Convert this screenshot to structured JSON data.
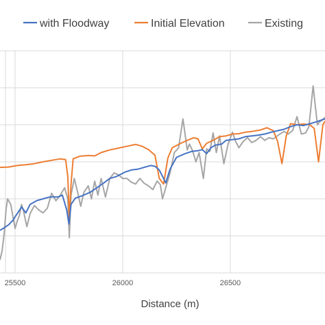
{
  "chart_data": {
    "type": "line",
    "xlabel": "Distance (m)",
    "ylabel": "",
    "xlim": [
      25430,
      26940
    ],
    "ylim": [
      0,
      6
    ],
    "x_ticks": [
      25500,
      26000,
      26500
    ],
    "x_tick_labels": [
      "25500",
      "26000",
      "26500"
    ],
    "grid": true,
    "legend_position": "top",
    "series": [
      {
        "name": "with Floodway",
        "color": "#4472c4",
        "points": [
          [
            25430,
            1.15
          ],
          [
            25450,
            1.22
          ],
          [
            25470,
            1.3
          ],
          [
            25490,
            1.42
          ],
          [
            25510,
            1.6
          ],
          [
            25530,
            1.78
          ],
          [
            25550,
            1.62
          ],
          [
            25570,
            1.85
          ],
          [
            25600,
            1.95
          ],
          [
            25630,
            2.0
          ],
          [
            25660,
            2.05
          ],
          [
            25700,
            2.05
          ],
          [
            25720,
            2.1
          ],
          [
            25740,
            1.7
          ],
          [
            25750,
            1.32
          ],
          [
            25760,
            1.85
          ],
          [
            25780,
            2.02
          ],
          [
            25810,
            2.08
          ],
          [
            25850,
            2.18
          ],
          [
            25880,
            2.3
          ],
          [
            25910,
            2.42
          ],
          [
            25940,
            2.55
          ],
          [
            25970,
            2.6
          ],
          [
            26010,
            2.72
          ],
          [
            26040,
            2.78
          ],
          [
            26070,
            2.8
          ],
          [
            26100,
            2.85
          ],
          [
            26130,
            2.9
          ],
          [
            26150,
            2.88
          ],
          [
            26170,
            2.78
          ],
          [
            26190,
            2.55
          ],
          [
            26200,
            2.43
          ],
          [
            26220,
            2.8
          ],
          [
            26250,
            3.12
          ],
          [
            26290,
            3.22
          ],
          [
            26320,
            3.28
          ],
          [
            26350,
            3.3
          ],
          [
            26370,
            3.33
          ],
          [
            26390,
            3.22
          ],
          [
            26410,
            3.38
          ],
          [
            26430,
            3.45
          ],
          [
            26460,
            3.48
          ],
          [
            26480,
            3.58
          ],
          [
            26510,
            3.6
          ],
          [
            26540,
            3.62
          ],
          [
            26570,
            3.68
          ],
          [
            26600,
            3.7
          ],
          [
            26630,
            3.72
          ],
          [
            26660,
            3.75
          ],
          [
            26690,
            3.8
          ],
          [
            26720,
            3.84
          ],
          [
            26750,
            3.88
          ],
          [
            26780,
            3.95
          ],
          [
            26810,
            4.0
          ],
          [
            26840,
            3.98
          ],
          [
            26870,
            4.03
          ],
          [
            26900,
            4.08
          ],
          [
            26920,
            4.12
          ],
          [
            26940,
            4.16
          ]
        ]
      },
      {
        "name": "Initial Elevation",
        "color": "#ed7d31",
        "points": [
          [
            25430,
            2.85
          ],
          [
            25470,
            2.86
          ],
          [
            25510,
            2.9
          ],
          [
            25550,
            2.92
          ],
          [
            25590,
            2.95
          ],
          [
            25630,
            3.0
          ],
          [
            25670,
            3.04
          ],
          [
            25710,
            3.08
          ],
          [
            25735,
            3.06
          ],
          [
            25745,
            2.6
          ],
          [
            25752,
            1.45
          ],
          [
            25760,
            2.4
          ],
          [
            25770,
            3.08
          ],
          [
            25800,
            3.15
          ],
          [
            25840,
            3.17
          ],
          [
            25870,
            3.16
          ],
          [
            25900,
            3.25
          ],
          [
            25940,
            3.32
          ],
          [
            25980,
            3.37
          ],
          [
            26020,
            3.42
          ],
          [
            26060,
            3.47
          ],
          [
            26090,
            3.42
          ],
          [
            26120,
            3.33
          ],
          [
            26150,
            3.18
          ],
          [
            26170,
            2.55
          ],
          [
            26190,
            2.4
          ],
          [
            26210,
            3.1
          ],
          [
            26230,
            3.38
          ],
          [
            26270,
            3.5
          ],
          [
            26300,
            3.58
          ],
          [
            26330,
            3.65
          ],
          [
            26350,
            3.62
          ],
          [
            26370,
            3.35
          ],
          [
            26390,
            3.5
          ],
          [
            26420,
            3.58
          ],
          [
            26450,
            3.68
          ],
          [
            26480,
            3.7
          ],
          [
            26510,
            3.75
          ],
          [
            26540,
            3.76
          ],
          [
            26570,
            3.8
          ],
          [
            26600,
            3.82
          ],
          [
            26640,
            3.86
          ],
          [
            26670,
            3.92
          ],
          [
            26700,
            3.84
          ],
          [
            26720,
            3.55
          ],
          [
            26740,
            2.95
          ],
          [
            26760,
            3.7
          ],
          [
            26780,
            4.03
          ],
          [
            26810,
            4.0
          ],
          [
            26840,
            4.02
          ],
          [
            26870,
            4.0
          ],
          [
            26890,
            3.9
          ],
          [
            26910,
            3.0
          ],
          [
            26930,
            4.0
          ],
          [
            26940,
            4.1
          ]
        ]
      },
      {
        "name": "Existing",
        "color": "#a5a5a5",
        "points": [
          [
            25430,
            0.35
          ],
          [
            25440,
            0.6
          ],
          [
            25450,
            1.1
          ],
          [
            25458,
            1.7
          ],
          [
            25465,
            2.0
          ],
          [
            25480,
            1.85
          ],
          [
            25500,
            1.2
          ],
          [
            25510,
            1.4
          ],
          [
            25520,
            1.55
          ],
          [
            25530,
            1.85
          ],
          [
            25540,
            1.65
          ],
          [
            25555,
            1.25
          ],
          [
            25570,
            1.6
          ],
          [
            25590,
            1.82
          ],
          [
            25610,
            1.7
          ],
          [
            25630,
            1.62
          ],
          [
            25650,
            1.75
          ],
          [
            25670,
            2.15
          ],
          [
            25690,
            1.95
          ],
          [
            25710,
            2.1
          ],
          [
            25730,
            2.3
          ],
          [
            25745,
            2.0
          ],
          [
            25752,
            0.95
          ],
          [
            25760,
            2.1
          ],
          [
            25775,
            2.55
          ],
          [
            25790,
            2.2
          ],
          [
            25805,
            1.8
          ],
          [
            25820,
            2.18
          ],
          [
            25840,
            2.35
          ],
          [
            25855,
            2.0
          ],
          [
            25870,
            2.48
          ],
          [
            25885,
            2.1
          ],
          [
            25900,
            2.55
          ],
          [
            25920,
            2.05
          ],
          [
            25940,
            2.55
          ],
          [
            25960,
            2.7
          ],
          [
            25980,
            2.65
          ],
          [
            26000,
            2.55
          ],
          [
            26020,
            2.55
          ],
          [
            26040,
            2.45
          ],
          [
            26060,
            2.4
          ],
          [
            26080,
            2.55
          ],
          [
            26100,
            2.42
          ],
          [
            26120,
            2.35
          ],
          [
            26140,
            2.25
          ],
          [
            26160,
            2.48
          ],
          [
            26175,
            2.38
          ],
          [
            26185,
            2.0
          ],
          [
            26200,
            2.3
          ],
          [
            26220,
            2.7
          ],
          [
            26240,
            3.25
          ],
          [
            26260,
            3.38
          ],
          [
            26280,
            4.16
          ],
          [
            26300,
            3.32
          ],
          [
            26310,
            3.48
          ],
          [
            26325,
            3.3
          ],
          [
            26340,
            3.0
          ],
          [
            26355,
            3.25
          ],
          [
            26375,
            2.55
          ],
          [
            26390,
            3.35
          ],
          [
            26405,
            3.28
          ],
          [
            26420,
            3.78
          ],
          [
            26435,
            3.25
          ],
          [
            26450,
            3.7
          ],
          [
            26470,
            2.95
          ],
          [
            26490,
            3.48
          ],
          [
            26510,
            3.8
          ],
          [
            26525,
            3.55
          ],
          [
            26540,
            3.38
          ],
          [
            26560,
            3.55
          ],
          [
            26580,
            3.65
          ],
          [
            26600,
            3.52
          ],
          [
            26620,
            3.58
          ],
          [
            26640,
            3.68
          ],
          [
            26660,
            3.58
          ],
          [
            26680,
            3.65
          ],
          [
            26700,
            3.62
          ],
          [
            26730,
            3.75
          ],
          [
            26750,
            3.82
          ],
          [
            26770,
            3.75
          ],
          [
            26790,
            3.85
          ],
          [
            26810,
            4.22
          ],
          [
            26830,
            3.75
          ],
          [
            26850,
            3.78
          ],
          [
            26865,
            3.95
          ],
          [
            26875,
            4.5
          ],
          [
            26885,
            5.05
          ],
          [
            26895,
            4.5
          ],
          [
            26905,
            4.0
          ],
          [
            26915,
            4.08
          ],
          [
            26925,
            4.12
          ],
          [
            26940,
            4.2
          ]
        ]
      }
    ]
  }
}
